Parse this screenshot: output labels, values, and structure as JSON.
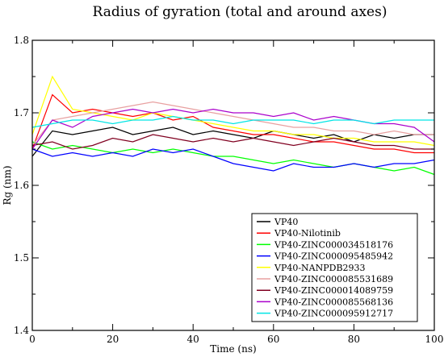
{
  "chart_data": {
    "type": "line",
    "title": "Radius of gyration (total and around axes)",
    "xlabel": "Time (ns)",
    "ylabel": "Rg (nm)",
    "xlim": [
      0,
      100
    ],
    "ylim": [
      1.4,
      1.8
    ],
    "xticks": [
      0,
      20,
      40,
      60,
      80,
      100
    ],
    "yticks": [
      1.4,
      1.5,
      1.6,
      1.7,
      1.8
    ],
    "xtick_labels": [
      "0",
      "20",
      "40",
      "60",
      "80",
      "100"
    ],
    "ytick_labels": [
      "1.4",
      "1.5",
      "1.6",
      "1.7",
      "1.8"
    ],
    "grid": false,
    "legend_position": "bottom-right",
    "x": [
      0,
      5,
      10,
      15,
      20,
      25,
      30,
      35,
      40,
      45,
      50,
      55,
      60,
      65,
      70,
      75,
      80,
      85,
      90,
      95,
      100
    ],
    "series": [
      {
        "name": "VP40",
        "color": "#000000",
        "values": [
          1.64,
          1.675,
          1.67,
          1.675,
          1.68,
          1.67,
          1.675,
          1.68,
          1.67,
          1.675,
          1.67,
          1.665,
          1.675,
          1.67,
          1.665,
          1.67,
          1.66,
          1.67,
          1.665,
          1.67,
          1.67
        ]
      },
      {
        "name": "VP40-Nilotinib",
        "color": "#ff0000",
        "values": [
          1.65,
          1.725,
          1.7,
          1.705,
          1.7,
          1.695,
          1.7,
          1.69,
          1.695,
          1.68,
          1.675,
          1.67,
          1.67,
          1.665,
          1.66,
          1.66,
          1.655,
          1.65,
          1.65,
          1.645,
          1.645
        ]
      },
      {
        "name": "VP40-ZINC000034518176",
        "color": "#00ff00",
        "values": [
          1.66,
          1.65,
          1.655,
          1.65,
          1.645,
          1.65,
          1.645,
          1.65,
          1.645,
          1.64,
          1.64,
          1.635,
          1.63,
          1.635,
          1.63,
          1.625,
          1.63,
          1.625,
          1.62,
          1.625,
          1.615
        ]
      },
      {
        "name": "VP40-ZINC000095485942",
        "color": "#0000ff",
        "values": [
          1.65,
          1.64,
          1.645,
          1.64,
          1.645,
          1.64,
          1.65,
          1.645,
          1.65,
          1.64,
          1.63,
          1.625,
          1.62,
          1.63,
          1.625,
          1.625,
          1.63,
          1.625,
          1.63,
          1.63,
          1.635
        ]
      },
      {
        "name": "VP40-NANPDB2933",
        "color": "#ffff00",
        "values": [
          1.67,
          1.75,
          1.705,
          1.7,
          1.695,
          1.69,
          1.7,
          1.695,
          1.69,
          1.685,
          1.68,
          1.675,
          1.675,
          1.67,
          1.67,
          1.665,
          1.665,
          1.66,
          1.66,
          1.66,
          1.655
        ]
      },
      {
        "name": "VP40-ZINC000085531689",
        "color": "#e8a0a0",
        "values": [
          1.655,
          1.69,
          1.695,
          1.7,
          1.705,
          1.71,
          1.715,
          1.71,
          1.705,
          1.7,
          1.695,
          1.69,
          1.685,
          1.68,
          1.68,
          1.675,
          1.675,
          1.67,
          1.675,
          1.67,
          1.67
        ]
      },
      {
        "name": "VP40-ZINC000014089759",
        "color": "#800020",
        "values": [
          1.655,
          1.66,
          1.65,
          1.655,
          1.665,
          1.66,
          1.67,
          1.665,
          1.66,
          1.665,
          1.66,
          1.665,
          1.66,
          1.655,
          1.66,
          1.665,
          1.66,
          1.655,
          1.655,
          1.65,
          1.65
        ]
      },
      {
        "name": "VP40-ZINC000085568136",
        "color": "#aa00cc",
        "values": [
          1.65,
          1.69,
          1.68,
          1.695,
          1.7,
          1.705,
          1.7,
          1.705,
          1.7,
          1.705,
          1.7,
          1.7,
          1.695,
          1.7,
          1.69,
          1.695,
          1.69,
          1.685,
          1.685,
          1.68,
          1.66
        ]
      },
      {
        "name": "VP40-ZINC000095912717",
        "color": "#00e5e5",
        "values": [
          1.68,
          1.685,
          1.69,
          1.69,
          1.685,
          1.69,
          1.69,
          1.695,
          1.69,
          1.69,
          1.685,
          1.69,
          1.69,
          1.69,
          1.685,
          1.69,
          1.69,
          1.685,
          1.69,
          1.69,
          1.69
        ]
      }
    ]
  }
}
